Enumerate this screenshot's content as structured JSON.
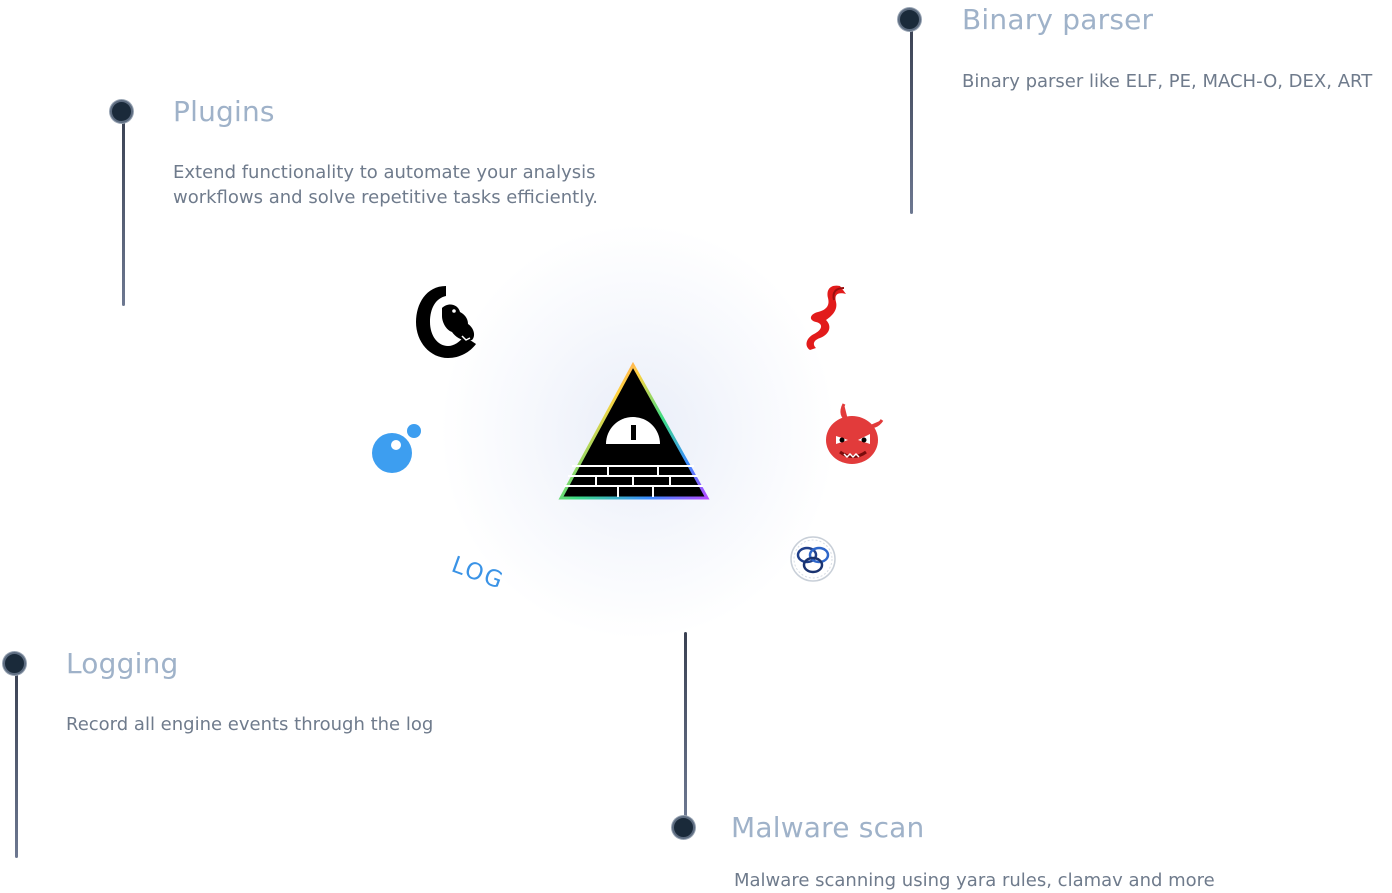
{
  "features": {
    "binary_parser": {
      "title": "Binary parser",
      "description": "Binary parser like ELF, PE, MACH-O, DEX, ART"
    },
    "plugins": {
      "title": "Plugins",
      "description": "Extend functionality to automate your analysis workflows and solve repetitive tasks efficiently."
    },
    "logging": {
      "title": "Logging",
      "description": "Record all engine events through the log"
    },
    "malware_scan": {
      "title": "Malware scan",
      "description": "Malware scanning using yara rules, clamav and more"
    }
  },
  "icons": {
    "center": "pyramid-logo-icon",
    "orbit": [
      "crow-logo-icon",
      "red-bracket-logo-icon",
      "devil-logo-icon",
      "rings-logo-icon",
      "blue-bubble-logo-icon",
      "log-text-icon"
    ]
  },
  "log_icon_text": "LOG",
  "colors": {
    "title": "#9fb2c9",
    "description": "#6f7b8c",
    "dot": "#1a2a3a",
    "log_blue": "#3a93e6",
    "devil_red": "#e23b3b"
  }
}
